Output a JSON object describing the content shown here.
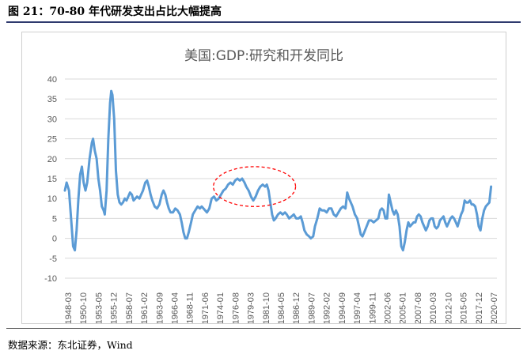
{
  "figure_caption": "图 21：70-80 年代研发支出占比大幅提高",
  "source_note": "数据来源：东北证券，Wind",
  "chart_data": {
    "type": "line",
    "title": "美国:GDP:研究和开发同比",
    "xlabel": "",
    "ylabel": "",
    "ylim": [
      -10,
      40
    ],
    "yticks": [
      40,
      35,
      30,
      25,
      20,
      15,
      10,
      5,
      0,
      -5,
      -10
    ],
    "xtick_labels": [
      "1948-03",
      "1950-10",
      "1953-05",
      "1955-12",
      "1958-07",
      "1961-02",
      "1963-09",
      "1966-04",
      "1968-11",
      "1971-06",
      "1974-01",
      "1976-08",
      "1979-03",
      "1981-10",
      "1984-05",
      "1986-12",
      "1989-07",
      "1992-02",
      "1994-09",
      "1997-04",
      "1999-11",
      "2002-06",
      "2005-01",
      "2007-08",
      "2010-03",
      "2012-10",
      "2015-05",
      "2017-12",
      "2020-07"
    ],
    "x_range": [
      1948.2,
      2021.8
    ],
    "grid": "horizontal",
    "line_color": "#5b9bd5",
    "highlight_color": "#ff0000",
    "highlight_region": {
      "x": [
        1973.5,
        1987.5
      ],
      "y": [
        8,
        18
      ]
    },
    "series": [
      {
        "name": "",
        "points": [
          [
            1948.2,
            12
          ],
          [
            1948.5,
            14
          ],
          [
            1948.9,
            12
          ],
          [
            1949.3,
            4
          ],
          [
            1949.6,
            -2
          ],
          [
            1949.9,
            -3
          ],
          [
            1950.2,
            2
          ],
          [
            1950.5,
            10
          ],
          [
            1950.8,
            16
          ],
          [
            1951.1,
            18
          ],
          [
            1951.4,
            14
          ],
          [
            1951.7,
            12
          ],
          [
            1952.0,
            14
          ],
          [
            1952.4,
            20
          ],
          [
            1952.8,
            24
          ],
          [
            1953.0,
            25
          ],
          [
            1953.3,
            22
          ],
          [
            1953.6,
            20
          ],
          [
            1953.9,
            15
          ],
          [
            1954.2,
            12
          ],
          [
            1954.5,
            8
          ],
          [
            1954.8,
            7
          ],
          [
            1955.0,
            6
          ],
          [
            1955.3,
            12
          ],
          [
            1955.6,
            25
          ],
          [
            1955.9,
            34
          ],
          [
            1956.1,
            37
          ],
          [
            1956.3,
            36
          ],
          [
            1956.6,
            30
          ],
          [
            1956.9,
            17
          ],
          [
            1957.2,
            11
          ],
          [
            1957.5,
            9
          ],
          [
            1957.8,
            8.5
          ],
          [
            1958.1,
            9
          ],
          [
            1958.4,
            10
          ],
          [
            1958.7,
            9.5
          ],
          [
            1959.0,
            10.5
          ],
          [
            1959.3,
            11.5
          ],
          [
            1959.6,
            11
          ],
          [
            1959.9,
            9.5
          ],
          [
            1960.2,
            10
          ],
          [
            1960.5,
            10.5
          ],
          [
            1960.9,
            10
          ],
          [
            1961.2,
            11
          ],
          [
            1961.5,
            12
          ],
          [
            1961.9,
            14
          ],
          [
            1962.2,
            14.5
          ],
          [
            1962.5,
            13
          ],
          [
            1962.8,
            11
          ],
          [
            1963.1,
            9.5
          ],
          [
            1963.5,
            8
          ],
          [
            1963.9,
            7.5
          ],
          [
            1964.3,
            8.5
          ],
          [
            1964.7,
            11
          ],
          [
            1965.0,
            12
          ],
          [
            1965.3,
            11
          ],
          [
            1965.6,
            9
          ],
          [
            1965.9,
            7.5
          ],
          [
            1966.2,
            6.5
          ],
          [
            1966.6,
            6.5
          ],
          [
            1967.0,
            7.5
          ],
          [
            1967.4,
            7
          ],
          [
            1967.8,
            6
          ],
          [
            1968.1,
            4
          ],
          [
            1968.4,
            1.5
          ],
          [
            1968.7,
            0
          ],
          [
            1969.0,
            0
          ],
          [
            1969.3,
            1.5
          ],
          [
            1969.7,
            4
          ],
          [
            1970.0,
            6
          ],
          [
            1970.4,
            7
          ],
          [
            1970.8,
            8
          ],
          [
            1971.2,
            7.5
          ],
          [
            1971.5,
            8
          ],
          [
            1971.8,
            7.5
          ],
          [
            1972.1,
            7
          ],
          [
            1972.4,
            6.5
          ],
          [
            1972.8,
            7.5
          ],
          [
            1973.2,
            10
          ],
          [
            1973.6,
            10.5
          ],
          [
            1974.0,
            9.5
          ],
          [
            1974.4,
            10
          ],
          [
            1974.8,
            11
          ],
          [
            1975.2,
            12
          ],
          [
            1975.6,
            12.5
          ],
          [
            1976.0,
            13.5
          ],
          [
            1976.4,
            14
          ],
          [
            1976.8,
            13.5
          ],
          [
            1977.2,
            14.5
          ],
          [
            1977.6,
            15
          ],
          [
            1978.0,
            14.5
          ],
          [
            1978.4,
            15
          ],
          [
            1978.8,
            14
          ],
          [
            1979.1,
            13
          ],
          [
            1979.5,
            12
          ],
          [
            1979.9,
            10.5
          ],
          [
            1980.3,
            9.5
          ],
          [
            1980.7,
            10.5
          ],
          [
            1981.1,
            12
          ],
          [
            1981.5,
            13
          ],
          [
            1981.9,
            13.5
          ],
          [
            1982.3,
            13
          ],
          [
            1982.6,
            13.5
          ],
          [
            1982.9,
            12
          ],
          [
            1983.2,
            9
          ],
          [
            1983.5,
            6
          ],
          [
            1983.8,
            4.5
          ],
          [
            1984.1,
            5
          ],
          [
            1984.5,
            6
          ],
          [
            1984.9,
            6.5
          ],
          [
            1985.3,
            6
          ],
          [
            1985.7,
            6.5
          ],
          [
            1986.0,
            6
          ],
          [
            1986.4,
            5
          ],
          [
            1986.8,
            5.5
          ],
          [
            1987.2,
            6
          ],
          [
            1987.6,
            5
          ],
          [
            1988.0,
            5
          ],
          [
            1988.4,
            5.5
          ],
          [
            1988.7,
            4
          ],
          [
            1989.0,
            2
          ],
          [
            1989.4,
            1
          ],
          [
            1989.8,
            0.5
          ],
          [
            1990.1,
            0
          ],
          [
            1990.5,
            0.5
          ],
          [
            1990.8,
            3
          ],
          [
            1991.2,
            5
          ],
          [
            1991.6,
            7.5
          ],
          [
            1992.0,
            7
          ],
          [
            1992.4,
            7
          ],
          [
            1992.8,
            6.5
          ],
          [
            1993.2,
            7.5
          ],
          [
            1993.6,
            7.5
          ],
          [
            1994.0,
            6
          ],
          [
            1994.4,
            5.5
          ],
          [
            1994.8,
            6.5
          ],
          [
            1995.2,
            7.5
          ],
          [
            1995.6,
            8
          ],
          [
            1996.0,
            7.5
          ],
          [
            1996.3,
            11.5
          ],
          [
            1996.6,
            10
          ],
          [
            1996.9,
            9
          ],
          [
            1997.2,
            8
          ],
          [
            1997.6,
            6
          ],
          [
            1998.0,
            5
          ],
          [
            1998.3,
            3
          ],
          [
            1998.6,
            1
          ],
          [
            1998.9,
            0.5
          ],
          [
            1999.2,
            1.5
          ],
          [
            1999.6,
            3
          ],
          [
            2000.0,
            4.5
          ],
          [
            2000.4,
            4.5
          ],
          [
            2000.8,
            4
          ],
          [
            2001.2,
            4.5
          ],
          [
            2001.6,
            5
          ],
          [
            2001.9,
            7
          ],
          [
            2002.2,
            7.5
          ],
          [
            2002.5,
            7
          ],
          [
            2002.8,
            5
          ],
          [
            2003.1,
            5
          ],
          [
            2003.4,
            11
          ],
          [
            2003.7,
            9
          ],
          [
            2004.0,
            7
          ],
          [
            2004.3,
            6
          ],
          [
            2004.6,
            7
          ],
          [
            2004.9,
            6
          ],
          [
            2005.2,
            3
          ],
          [
            2005.5,
            -2
          ],
          [
            2005.8,
            -3
          ],
          [
            2006.1,
            -1
          ],
          [
            2006.4,
            2
          ],
          [
            2006.7,
            4
          ],
          [
            2007.0,
            3
          ],
          [
            2007.3,
            3.5
          ],
          [
            2007.6,
            4
          ],
          [
            2007.9,
            4
          ],
          [
            2008.2,
            5.5
          ],
          [
            2008.5,
            6
          ],
          [
            2008.8,
            5.5
          ],
          [
            2009.1,
            4
          ],
          [
            2009.4,
            3
          ],
          [
            2009.7,
            2
          ],
          [
            2010.0,
            3
          ],
          [
            2010.3,
            4.5
          ],
          [
            2010.6,
            5
          ],
          [
            2010.9,
            5
          ],
          [
            2011.2,
            3
          ],
          [
            2011.5,
            2.5
          ],
          [
            2011.8,
            3
          ],
          [
            2012.1,
            4.5
          ],
          [
            2012.4,
            5
          ],
          [
            2012.7,
            5.5
          ],
          [
            2013.0,
            4
          ],
          [
            2013.3,
            3
          ],
          [
            2013.6,
            4
          ],
          [
            2013.9,
            5
          ],
          [
            2014.2,
            5.5
          ],
          [
            2014.5,
            5
          ],
          [
            2014.8,
            4
          ],
          [
            2015.1,
            3
          ],
          [
            2015.4,
            4.5
          ],
          [
            2015.7,
            6
          ],
          [
            2016.0,
            7
          ],
          [
            2016.3,
            9.5
          ],
          [
            2016.6,
            9
          ],
          [
            2016.9,
            9
          ],
          [
            2017.2,
            9.5
          ],
          [
            2017.5,
            8.5
          ],
          [
            2017.8,
            8.5
          ],
          [
            2018.1,
            8
          ],
          [
            2018.4,
            6
          ],
          [
            2018.7,
            3
          ],
          [
            2019.0,
            2
          ],
          [
            2019.3,
            5
          ],
          [
            2019.6,
            7
          ],
          [
            2019.9,
            8
          ],
          [
            2020.2,
            8.5
          ],
          [
            2020.5,
            9
          ],
          [
            2020.8,
            13
          ]
        ]
      }
    ]
  }
}
